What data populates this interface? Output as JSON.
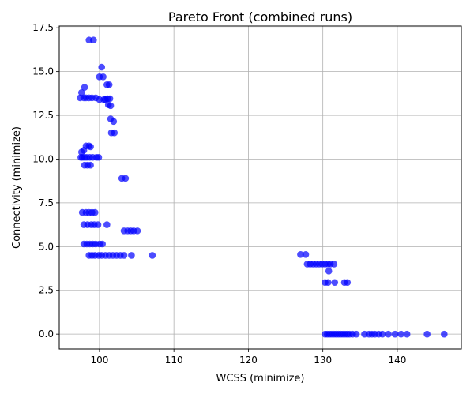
{
  "chart_data": {
    "type": "scatter",
    "title": "Pareto Front (combined runs)",
    "xlabel": "WCSS (minimize)",
    "ylabel": "Connectivity (minimize)",
    "xlim": [
      94.6,
      148.6
    ],
    "ylim": [
      -0.85,
      17.6
    ],
    "xticks": [
      100,
      110,
      120,
      130,
      140
    ],
    "xtick_labels": [
      "100",
      "110",
      "120",
      "130",
      "140"
    ],
    "yticks": [
      0.0,
      2.5,
      5.0,
      7.5,
      10.0,
      12.5,
      15.0,
      17.5
    ],
    "ytick_labels": [
      "0.0",
      "2.5",
      "5.0",
      "7.5",
      "10.0",
      "12.5",
      "15.0",
      "17.5"
    ],
    "grid": true,
    "marker_color": "#0000ff",
    "marker_alpha": 0.7,
    "points": {
      "x": [
        98.6,
        99.2,
        100.3,
        100.0,
        100.5,
        101.0,
        101.3,
        97.4,
        97.9,
        98.2,
        98.6,
        99.0,
        99.5,
        100.0,
        100.6,
        101.1,
        101.4,
        101.5,
        101.2,
        100.8,
        98.0,
        97.6,
        101.5,
        101.9,
        101.6,
        102.0,
        97.5,
        97.7,
        98.0,
        98.3,
        98.7,
        99.1,
        99.6,
        99.9,
        98.2,
        98.6,
        98.0,
        98.4,
        98.8,
        97.6,
        97.9,
        98.8,
        103.0,
        103.5,
        97.7,
        98.2,
        98.6,
        99.0,
        99.4,
        97.9,
        98.4,
        98.9,
        99.3,
        99.8,
        101.0,
        103.3,
        103.8,
        104.2,
        104.6,
        105.1,
        97.9,
        98.3,
        98.7,
        99.1,
        99.5,
        100.0,
        100.4,
        98.6,
        99.0,
        99.4,
        99.9,
        100.3,
        100.8,
        101.3,
        101.8,
        102.3,
        102.8,
        103.3,
        104.3,
        107.1,
        127.0,
        127.7,
        127.9,
        128.3,
        128.7,
        129.1,
        129.5,
        129.9,
        130.3,
        130.7,
        131.0,
        131.5,
        130.8,
        130.3,
        130.7,
        131.6,
        132.9,
        133.3,
        130.3,
        130.6,
        130.9,
        131.2,
        131.5,
        131.8,
        132.1,
        132.4,
        132.7,
        133.0,
        133.3,
        133.6,
        134.0,
        134.5,
        135.6,
        136.2,
        136.6,
        137.0,
        137.5,
        138.0,
        138.8,
        139.7,
        140.5,
        141.3,
        144.0,
        146.3
      ],
      "y": [
        16.8,
        16.8,
        15.25,
        14.7,
        14.7,
        14.25,
        14.25,
        13.5,
        13.5,
        13.5,
        13.5,
        13.5,
        13.5,
        13.4,
        13.4,
        13.45,
        13.45,
        13.05,
        13.1,
        13.4,
        14.1,
        13.8,
        12.3,
        12.15,
        11.5,
        11.5,
        10.1,
        10.1,
        10.1,
        10.1,
        10.1,
        10.1,
        10.1,
        10.1,
        10.75,
        10.75,
        9.65,
        9.65,
        9.65,
        10.4,
        10.5,
        10.7,
        8.9,
        8.9,
        6.95,
        6.95,
        6.95,
        6.95,
        6.95,
        6.25,
        6.25,
        6.25,
        6.25,
        6.25,
        6.25,
        5.9,
        5.9,
        5.9,
        5.9,
        5.9,
        5.15,
        5.15,
        5.15,
        5.15,
        5.15,
        5.15,
        5.15,
        4.5,
        4.5,
        4.5,
        4.5,
        4.5,
        4.5,
        4.5,
        4.5,
        4.5,
        4.5,
        4.5,
        4.5,
        4.5,
        4.55,
        4.55,
        4.0,
        4.0,
        4.0,
        4.0,
        4.0,
        4.0,
        4.0,
        4.0,
        4.0,
        4.0,
        3.6,
        2.95,
        2.95,
        2.95,
        2.95,
        2.95,
        0.0,
        0.0,
        0.0,
        0.0,
        0.0,
        0.0,
        0.0,
        0.0,
        0.0,
        0.0,
        0.0,
        0.0,
        0.0,
        0.0,
        0.0,
        0.0,
        0.0,
        0.0,
        0.0,
        0.0,
        0.0,
        0.0,
        0.0,
        0.0,
        0.0,
        0.0
      ]
    }
  }
}
